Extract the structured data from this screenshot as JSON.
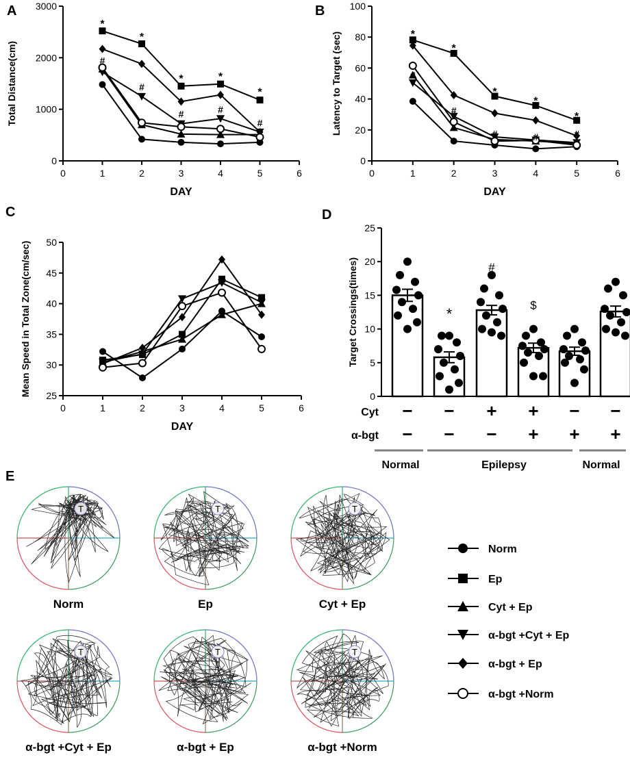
{
  "chart_data": [
    {
      "panel": "A",
      "type": "line",
      "xlabel": "DAY",
      "ylabel": "Total Distance(cm)",
      "xlim": [
        0,
        6
      ],
      "ylim": [
        0,
        3000
      ],
      "xticks": [
        0,
        1,
        2,
        3,
        4,
        5,
        6
      ],
      "yticks": [
        0,
        1000,
        2000,
        3000
      ],
      "x": [
        1,
        2,
        3,
        4,
        5
      ],
      "series": [
        {
          "name": "Norm",
          "marker": "circle",
          "values": [
            1480,
            420,
            360,
            330,
            360
          ]
        },
        {
          "name": "Ep",
          "marker": "square",
          "values": [
            2520,
            2270,
            1450,
            1490,
            1180
          ]
        },
        {
          "name": "Cyt + Ep",
          "marker": "triangle-up",
          "values": [
            1780,
            700,
            520,
            510,
            510
          ]
        },
        {
          "name": "α-bgt +Cyt + Ep",
          "marker": "triangle-down",
          "values": [
            1720,
            1250,
            720,
            820,
            560
          ]
        },
        {
          "name": "α-bgt + Ep",
          "marker": "diamond",
          "values": [
            2170,
            1880,
            1150,
            1280,
            560
          ]
        },
        {
          "name": "α-bgt +Norm",
          "marker": "open-circle",
          "values": [
            1810,
            740,
            660,
            620,
            460
          ]
        }
      ],
      "annotations": [
        {
          "x": 1,
          "y": 2720,
          "text": "*"
        },
        {
          "x": 2,
          "y": 2470,
          "text": "*"
        },
        {
          "x": 3,
          "y": 1660,
          "text": "*"
        },
        {
          "x": 4,
          "y": 1700,
          "text": "*"
        },
        {
          "x": 5,
          "y": 1400,
          "text": "*"
        },
        {
          "x": 1,
          "y": 1960,
          "text": "#"
        },
        {
          "x": 2,
          "y": 1450,
          "text": "#"
        },
        {
          "x": 3,
          "y": 920,
          "text": "#"
        },
        {
          "x": 4,
          "y": 1010,
          "text": "#"
        },
        {
          "x": 5,
          "y": 750,
          "text": "#"
        }
      ]
    },
    {
      "panel": "B",
      "type": "line",
      "xlabel": "DAY",
      "ylabel": "Latency to Target (sec)",
      "xlim": [
        0,
        6
      ],
      "ylim": [
        0,
        100
      ],
      "xticks": [
        0,
        1,
        2,
        3,
        4,
        5,
        6
      ],
      "yticks": [
        0,
        20,
        40,
        60,
        80,
        100
      ],
      "x": [
        1,
        2,
        3,
        4,
        5
      ],
      "series": [
        {
          "name": "Norm",
          "marker": "circle",
          "values": [
            38.5,
            12.8,
            10.2,
            7.8,
            9.2
          ]
        },
        {
          "name": "Ep",
          "marker": "square",
          "values": [
            78.2,
            69.5,
            41.8,
            35.8,
            26.2
          ]
        },
        {
          "name": "Cyt + Ep",
          "marker": "triangle-up",
          "values": [
            55.5,
            21.5,
            13.8,
            12.8,
            11.2
          ]
        },
        {
          "name": "α-bgt +Cyt + Ep",
          "marker": "triangle-down",
          "values": [
            50.5,
            28.8,
            15.5,
            13.5,
            11.8
          ]
        },
        {
          "name": "α-bgt + Ep",
          "marker": "diamond",
          "values": [
            74.5,
            42.5,
            30.8,
            26.2,
            16.2
          ]
        },
        {
          "name": "α-bgt +Norm",
          "marker": "open-circle",
          "values": [
            61.5,
            25.2,
            12.8,
            13.2,
            10.2
          ]
        }
      ],
      "annotations": [
        {
          "x": 1,
          "y": 84,
          "text": "*"
        },
        {
          "x": 2,
          "y": 75,
          "text": "*"
        },
        {
          "x": 3,
          "y": 47,
          "text": "*"
        },
        {
          "x": 4,
          "y": 41,
          "text": "*"
        },
        {
          "x": 5,
          "y": 31,
          "text": "*"
        },
        {
          "x": 1,
          "y": 56,
          "text": "#"
        },
        {
          "x": 2,
          "y": 33,
          "text": "#"
        },
        {
          "x": 3,
          "y": 18,
          "text": "#"
        },
        {
          "x": 4,
          "y": 16,
          "text": "#"
        },
        {
          "x": 5,
          "y": 18,
          "text": "#"
        }
      ]
    },
    {
      "panel": "C",
      "type": "line",
      "xlabel": "DAY",
      "ylabel": "Mean Speed in Total Zone(cm/sec)",
      "xlim": [
        0,
        6
      ],
      "ylim": [
        25,
        50
      ],
      "xticks": [
        0,
        1,
        2,
        3,
        4,
        5,
        6
      ],
      "yticks": [
        25,
        30,
        35,
        40,
        45,
        50
      ],
      "x": [
        1,
        2,
        3,
        4,
        5
      ],
      "series": [
        {
          "name": "Norm",
          "marker": "circle",
          "values": [
            32.2,
            27.9,
            32.6,
            38.8,
            34.6
          ]
        },
        {
          "name": "Ep",
          "marker": "square",
          "values": [
            30.8,
            31.7,
            35.0,
            44.0,
            41.0
          ]
        },
        {
          "name": "Cyt + Ep",
          "marker": "triangle-up",
          "values": [
            30.4,
            32.2,
            34.2,
            38.2,
            40.0
          ]
        },
        {
          "name": "α-bgt +Cyt + Ep",
          "marker": "triangle-down",
          "values": [
            30.5,
            31.8,
            40.8,
            43.4,
            40.2
          ]
        },
        {
          "name": "α-bgt + Ep",
          "marker": "diamond",
          "values": [
            30.2,
            32.8,
            37.8,
            47.2,
            38.2
          ]
        },
        {
          "name": "α-bgt +Norm",
          "marker": "open-circle",
          "values": [
            29.6,
            30.3,
            39.6,
            41.8,
            32.6
          ]
        }
      ],
      "annotations": []
    },
    {
      "panel": "D",
      "type": "bar",
      "ylabel": "Target Crossings(times)",
      "ylim": [
        0,
        25
      ],
      "yticks": [
        0,
        5,
        10,
        15,
        20,
        25
      ],
      "categories": [
        "1",
        "2",
        "3",
        "4",
        "5",
        "6"
      ],
      "values": [
        15.0,
        5.8,
        12.8,
        7.2,
        6.7,
        12.6
      ],
      "errors": [
        0.9,
        0.8,
        0.7,
        0.7,
        0.6,
        0.8
      ],
      "points": [
        [
          20.0,
          18.0,
          17.0,
          15.8,
          15.0,
          14.0,
          13.0,
          12.0,
          11.0,
          10.0
        ],
        [
          9.0,
          9.0,
          8.0,
          7.0,
          6.0,
          5.0,
          4.0,
          3.0,
          2.0,
          1.0
        ],
        [
          18.0,
          16.0,
          15.0,
          14.0,
          13.0,
          12.0,
          11.0,
          10.0,
          9.0,
          9.5
        ],
        [
          10.0,
          9.0,
          8.0,
          7.5,
          7.0,
          6.5,
          6.0,
          5.0,
          3.0,
          3.0
        ],
        [
          10.0,
          9.0,
          8.0,
          7.0,
          6.8,
          6.0,
          5.5,
          5.0,
          4.0,
          2.0
        ],
        [
          17.0,
          16.0,
          15.0,
          13.0,
          12.5,
          12.0,
          11.0,
          10.0,
          9.0,
          9.5
        ]
      ],
      "significance": [
        {
          "bar": 1,
          "symbol": "*"
        },
        {
          "bar": 2,
          "symbol": "#"
        },
        {
          "bar": 3,
          "symbol": "$"
        }
      ],
      "treatment_rows": [
        {
          "label": "Cyt",
          "signs": [
            "−",
            "−",
            "+",
            "+",
            "−",
            "−"
          ]
        },
        {
          "label": "α-bgt",
          "signs": [
            "−",
            "−",
            "−",
            "+",
            "+",
            "+"
          ]
        }
      ],
      "groups": [
        {
          "label": "Normal",
          "bars": [
            0
          ]
        },
        {
          "label": "Epilepsy",
          "bars": [
            1,
            2,
            3,
            4
          ]
        },
        {
          "label": "Normal",
          "bars": [
            5
          ]
        }
      ]
    }
  ],
  "panel_labels": {
    "a": "A",
    "b": "B",
    "c": "C",
    "d": "D",
    "e": "E"
  },
  "tracks": [
    {
      "caption": "Norm",
      "target": "T"
    },
    {
      "caption": "Ep",
      "target": "T"
    },
    {
      "caption": "Cyt + Ep",
      "target": "T"
    },
    {
      "caption": "α-bgt +Cyt + Ep",
      "target": "T"
    },
    {
      "caption": "α-bgt + Ep",
      "target": "T"
    },
    {
      "caption": "α-bgt +Norm",
      "target": "T"
    }
  ],
  "legend": [
    {
      "label": "Norm",
      "marker": "circle"
    },
    {
      "label": "Ep",
      "marker": "square"
    },
    {
      "label": "Cyt + Ep",
      "marker": "triangle-up"
    },
    {
      "label": "α-bgt +Cyt + Ep",
      "marker": "triangle-down"
    },
    {
      "label": "α-bgt + Ep",
      "marker": "diamond"
    },
    {
      "label": "α-bgt +Norm",
      "marker": "open-circle"
    }
  ],
  "colors": {
    "ink": "#000000",
    "group_bar": "#7f7f7f",
    "quad_top_left": "#2fb36a",
    "quad_top_right": "#6c72c8",
    "quad_bottom_left": "#e0505a",
    "quad_bottom_right": "#3a9a5a",
    "cross_h_left": "#c0504d",
    "cross_h_right": "#2aa6c9",
    "cross_v_top": "#3aa86a",
    "cross_v_bottom": "#8a7a5a",
    "target_ring": "#8080c0"
  }
}
